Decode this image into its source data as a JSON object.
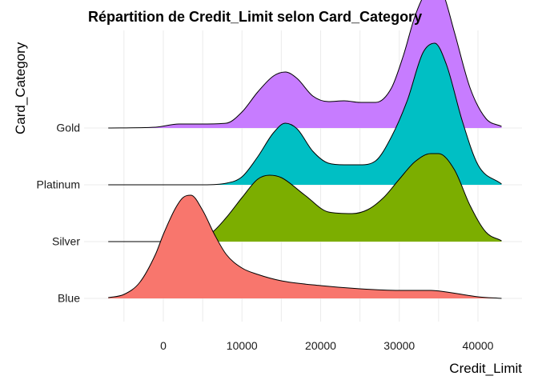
{
  "chart_data": {
    "type": "ridgeline",
    "title": "Répartition de Credit_Limit selon Card_Category",
    "xlabel": "Credit_Limit",
    "ylabel": "Card_Category",
    "xlim": [
      -7500,
      43500
    ],
    "x_ticks": [
      0,
      10000,
      20000,
      30000,
      40000
    ],
    "x_tick_labels": [
      "0",
      "10000",
      "20000",
      "30000",
      "40000"
    ],
    "grid": true,
    "categories": [
      "Blue",
      "Silver",
      "Platinum",
      "Gold"
    ],
    "series": [
      {
        "name": "Blue",
        "color": "#F8766D",
        "x": [
          -7000,
          -5000,
          -3000,
          -1000,
          0,
          1500,
          2500,
          3500,
          5000,
          6500,
          8000,
          10000,
          12000,
          15000,
          20000,
          25000,
          30000,
          34000,
          36000,
          40000,
          43000
        ],
        "density": [
          0.01,
          0.05,
          0.2,
          0.55,
          0.8,
          1.12,
          1.26,
          1.29,
          1.1,
          0.8,
          0.55,
          0.38,
          0.3,
          0.22,
          0.16,
          0.12,
          0.1,
          0.1,
          0.08,
          0.02,
          0.0
        ]
      },
      {
        "name": "Silver",
        "color": "#7CAE00",
        "x": [
          -7000,
          0,
          3000,
          6000,
          8000,
          10000,
          12000,
          13500,
          15000,
          18000,
          21000,
          24000,
          26000,
          28000,
          30000,
          32000,
          34000,
          35000,
          37000,
          39000,
          41000,
          43000
        ],
        "density": [
          0.0,
          0.0,
          0.02,
          0.1,
          0.3,
          0.55,
          0.78,
          0.83,
          0.8,
          0.58,
          0.37,
          0.35,
          0.4,
          0.55,
          0.78,
          1.0,
          1.1,
          1.1,
          0.9,
          0.45,
          0.12,
          0.01
        ]
      },
      {
        "name": "Platinum",
        "color": "#00BFC4",
        "x": [
          -7000,
          5000,
          8000,
          10000,
          12000,
          14000,
          15500,
          17000,
          19000,
          21000,
          23000,
          25000,
          27000,
          29000,
          31000,
          33000,
          34500,
          36000,
          38000,
          40000,
          43000
        ],
        "density": [
          0.0,
          0.0,
          0.02,
          0.1,
          0.35,
          0.65,
          0.77,
          0.7,
          0.42,
          0.27,
          0.25,
          0.25,
          0.3,
          0.6,
          1.05,
          1.65,
          1.77,
          1.5,
          0.8,
          0.25,
          0.01
        ]
      },
      {
        "name": "Gold",
        "color": "#C77CFF",
        "x": [
          -7000,
          -1000,
          2000,
          5000,
          8000,
          10000,
          12000,
          14000,
          15500,
          17000,
          19000,
          21000,
          23000,
          25000,
          27000,
          29000,
          30500,
          32000,
          33500,
          34500,
          35500,
          37000,
          39000,
          41000,
          43000
        ],
        "density": [
          0.0,
          0.01,
          0.05,
          0.05,
          0.06,
          0.2,
          0.45,
          0.65,
          0.7,
          0.62,
          0.4,
          0.33,
          0.34,
          0.32,
          0.32,
          0.5,
          0.9,
          1.4,
          1.72,
          1.8,
          1.7,
          1.2,
          0.5,
          0.12,
          0.02
        ]
      }
    ]
  }
}
